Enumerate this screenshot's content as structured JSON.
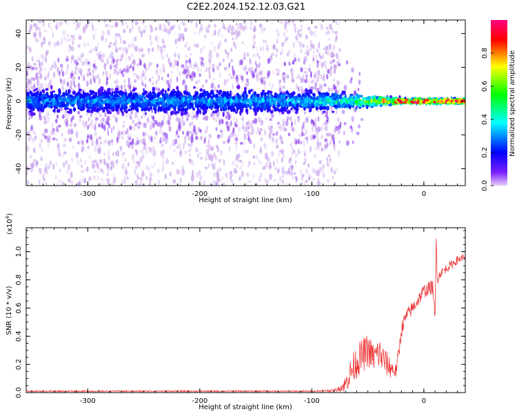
{
  "title": "C2E2.2024.152.12.03.G21",
  "chart_data": [
    {
      "type": "heatmap",
      "xlabel": "Height of straight line (km)",
      "ylabel": "Frequency (Hz)",
      "xlim": [
        -355,
        37
      ],
      "ylim": [
        -50,
        48
      ],
      "xticks": [
        -300,
        -200,
        -100,
        0
      ],
      "yticks": [
        -40,
        -20,
        0,
        20,
        40
      ],
      "colorbar": {
        "label": "Normalized spectral amplitude",
        "range": [
          0,
          1
        ],
        "ticks": [
          "0.0",
          "0.2",
          "0.4",
          "0.6",
          "0.8"
        ],
        "colormap": [
          "#e6ccf5",
          "#6a00ff",
          "#0000ff",
          "#00ffff",
          "#00ff00",
          "#ffff00",
          "#ff0000",
          "#ff0080"
        ]
      },
      "signal_band": [
        {
          "x": -355,
          "halfwidth_hz": 9,
          "peak": 0.25
        },
        {
          "x": -200,
          "halfwidth_hz": 9,
          "peak": 0.28
        },
        {
          "x": -100,
          "halfwidth_hz": 8,
          "peak": 0.32
        },
        {
          "x": -60,
          "halfwidth_hz": 6,
          "peak": 0.5
        },
        {
          "x": -40,
          "halfwidth_hz": 4,
          "peak": 0.7
        },
        {
          "x": -20,
          "halfwidth_hz": 2,
          "peak": 0.9
        },
        {
          "x": 0,
          "halfwidth_hz": 2,
          "peak": 0.95
        },
        {
          "x": 37,
          "halfwidth_hz": 2,
          "peak": 0.95
        }
      ],
      "noise_extent_x": [
        -355,
        -75
      ]
    },
    {
      "type": "line",
      "xlabel": "Height of straight line (km)",
      "ylabel": "SNR (10 * v/v)",
      "scale_note": "(x10",
      "scale_exp": "4",
      "xlim": [
        -355,
        37
      ],
      "ylim": [
        0,
        1.17
      ],
      "xticks": [
        -300,
        -200,
        -100,
        0
      ],
      "yticks": [
        "0.0",
        "0.2",
        "0.4",
        "0.6",
        "0.8",
        "1.0"
      ],
      "series": [
        {
          "color": "#ee3333",
          "x": [
            -355,
            -300,
            -200,
            -100,
            -80,
            -75,
            -70,
            -65,
            -60,
            -55,
            -50,
            -45,
            -40,
            -35,
            -30,
            -25,
            -22,
            -20,
            -18,
            -15,
            -10,
            -5,
            0,
            5,
            8,
            10,
            11,
            12,
            15,
            20,
            25,
            30,
            37
          ],
          "y": [
            0.01,
            0.01,
            0.01,
            0.01,
            0.015,
            0.03,
            0.06,
            0.15,
            0.22,
            0.26,
            0.3,
            0.25,
            0.28,
            0.22,
            0.18,
            0.15,
            0.3,
            0.45,
            0.5,
            0.55,
            0.6,
            0.66,
            0.72,
            0.74,
            0.75,
            0.5,
            1.12,
            0.8,
            0.85,
            0.88,
            0.91,
            0.94,
            0.97
          ],
          "noise": [
            0.005,
            0.005,
            0.005,
            0.005,
            0.01,
            0.02,
            0.06,
            0.1,
            0.12,
            0.12,
            0.12,
            0.1,
            0.12,
            0.1,
            0.08,
            0.05,
            0.06,
            0.06,
            0.05,
            0.05,
            0.05,
            0.05,
            0.05,
            0.05,
            0.05,
            0.05,
            0.03,
            0.04,
            0.03,
            0.03,
            0.03,
            0.03,
            0.02
          ]
        }
      ]
    }
  ]
}
